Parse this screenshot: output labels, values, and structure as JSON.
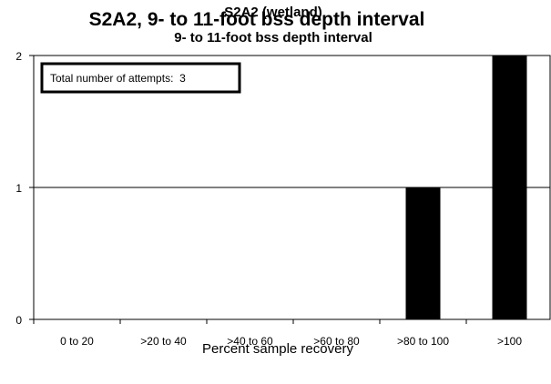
{
  "chart_data": {
    "type": "bar",
    "title": "S2A2, 9- to 11-foot bss depth interval",
    "overlay_title": "S2A2 (wetland)",
    "subtitle": "9- to 11-foot bss depth interval",
    "categories": [
      "0 to 20",
      ">20 to 40",
      ">40 to 60",
      ">60 to 80",
      ">80 to 100",
      ">100"
    ],
    "values": [
      0,
      0,
      0,
      0,
      1,
      2
    ],
    "xlabel": "Percent sample recovery",
    "ylabel": "",
    "ylim": [
      0,
      2
    ],
    "yticks": [
      "0",
      "1",
      "2"
    ],
    "grid": true,
    "bar_color": "#000000",
    "annotation": "Total number of attempts:  3"
  }
}
